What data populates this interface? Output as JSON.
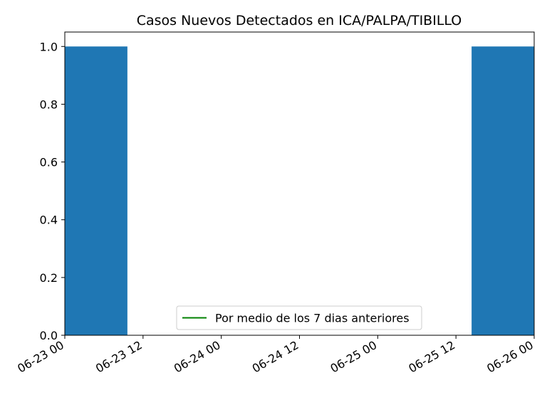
{
  "chart_data": {
    "type": "bar",
    "title": "Casos Nuevos Detectados en ICA/PALPA/TIBILLO",
    "xlabel": "",
    "ylabel": "",
    "x_axis": "date",
    "xlim": [
      "2020-06-23 00:00",
      "2020-06-26 00:00"
    ],
    "ylim": [
      0,
      1.05
    ],
    "x_ticks": [
      "06-23 00",
      "06-23 12",
      "06-24 00",
      "06-24 12",
      "06-25 00",
      "06-25 12",
      "06-26 00"
    ],
    "y_ticks": [
      "0.0",
      "0.2",
      "0.4",
      "0.6",
      "0.8",
      "1.0"
    ],
    "bar_color": "#1f77b4",
    "bars": [
      {
        "date": "2020-06-23",
        "value": 1
      },
      {
        "date": "2020-06-24",
        "value": 0
      },
      {
        "date": "2020-06-25",
        "value": 0
      },
      {
        "date": "2020-06-26",
        "value": 1
      }
    ],
    "legend": {
      "placement": "lower center",
      "entries": [
        {
          "label": "Por medio de los 7 dias anteriores",
          "color": "#008000",
          "marker": "line"
        }
      ]
    },
    "grid": false
  }
}
